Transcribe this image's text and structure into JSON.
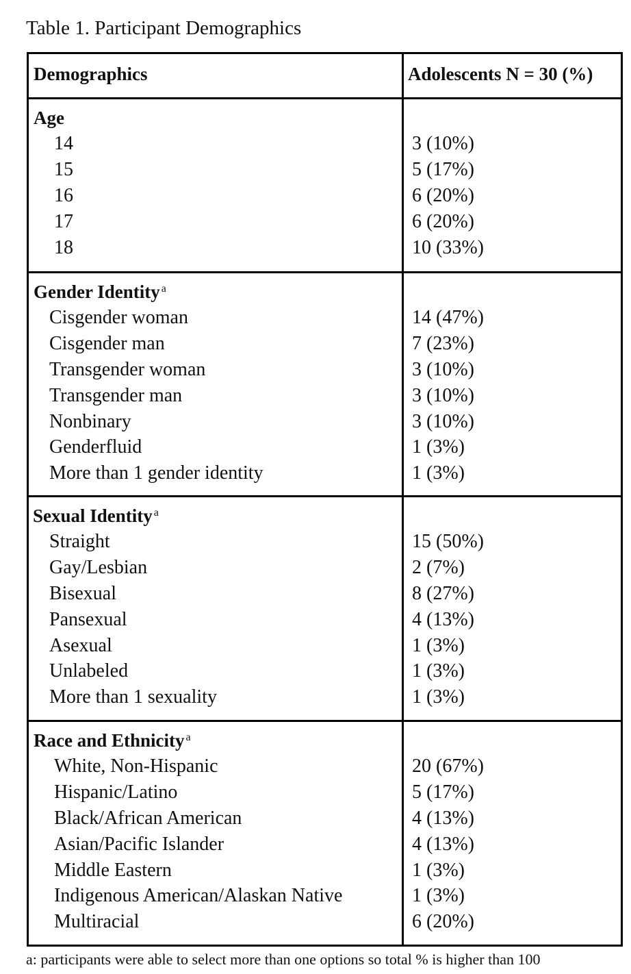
{
  "caption": "Table 1. Participant Demographics",
  "header": {
    "col1": "Demographics",
    "col2": "Adolescents N = 30 (%)"
  },
  "sections": [
    {
      "title": "Age",
      "sup": "",
      "rows": [
        {
          "label": "14",
          "value": "3 (10%)"
        },
        {
          "label": "15",
          "value": "5 (17%)"
        },
        {
          "label": "16",
          "value": "6 (20%)"
        },
        {
          "label": "17",
          "value": "6 (20%)"
        },
        {
          "label": "18",
          "value": "10 (33%)"
        }
      ]
    },
    {
      "title": "Gender Identity",
      "sup": "a",
      "rows": [
        {
          "label": "Cisgender woman",
          "value": "14 (47%)"
        },
        {
          "label": "Cisgender man",
          "value": "7 (23%)"
        },
        {
          "label": "Transgender woman",
          "value": "3 (10%)"
        },
        {
          "label": "Transgender man",
          "value": "3 (10%)"
        },
        {
          "label": "Nonbinary",
          "value": "3 (10%)"
        },
        {
          "label": "Genderfluid",
          "value": "1 (3%)"
        },
        {
          "label": "More than 1 gender identity",
          "value": "1 (3%)"
        }
      ]
    },
    {
      "title": "Sexual Identity",
      "sup": "a",
      "rows": [
        {
          "label": "Straight",
          "value": "15 (50%)"
        },
        {
          "label": "Gay/Lesbian",
          "value": "2 (7%)"
        },
        {
          "label": "Bisexual",
          "value": "8 (27%)"
        },
        {
          "label": "Pansexual",
          "value": "4 (13%)"
        },
        {
          "label": "Asexual",
          "value": "1 (3%)"
        },
        {
          "label": "Unlabeled",
          "value": "1 (3%)"
        },
        {
          "label": "More than 1 sexuality",
          "value": "1 (3%)"
        }
      ]
    },
    {
      "title": "Race and Ethnicity",
      "sup": "a",
      "rows": [
        {
          "label": "White, Non-Hispanic",
          "value": "20 (67%)"
        },
        {
          "label": "Hispanic/Latino",
          "value": "5 (17%)"
        },
        {
          "label": "Black/African American",
          "value": "4 (13%)"
        },
        {
          "label": "Asian/Pacific Islander",
          "value": "4 (13%)"
        },
        {
          "label": "Middle Eastern",
          "value": "1 (3%)"
        },
        {
          "label": "Indigenous American/Alaskan Native",
          "value": "1 (3%)"
        },
        {
          "label": "Multiracial",
          "value": "6 (20%)"
        }
      ]
    }
  ],
  "footnote": "a: participants were able to select more than one options so total % is higher than 100"
}
